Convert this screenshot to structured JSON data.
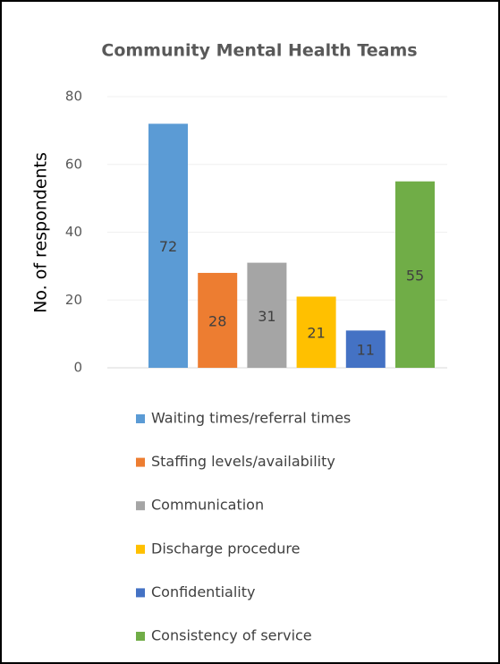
{
  "chart_data": {
    "type": "bar",
    "title": "Community Mental Health Teams",
    "ylabel": "No. of respondents",
    "categories": [
      "Waiting times/referral times",
      "Staffing levels/availability",
      "Communication",
      "Discharge procedure",
      "Confidentiality",
      "Consistency of service"
    ],
    "values": [
      72,
      28,
      31,
      21,
      11,
      55
    ],
    "colors": [
      "#5b9bd5",
      "#ed7d31",
      "#a5a5a5",
      "#ffc000",
      "#4472c4",
      "#70ad47"
    ],
    "ylim": [
      0,
      80
    ],
    "yticks": [
      0,
      20,
      40,
      60,
      80
    ],
    "grid": true,
    "legend": "bottom"
  }
}
